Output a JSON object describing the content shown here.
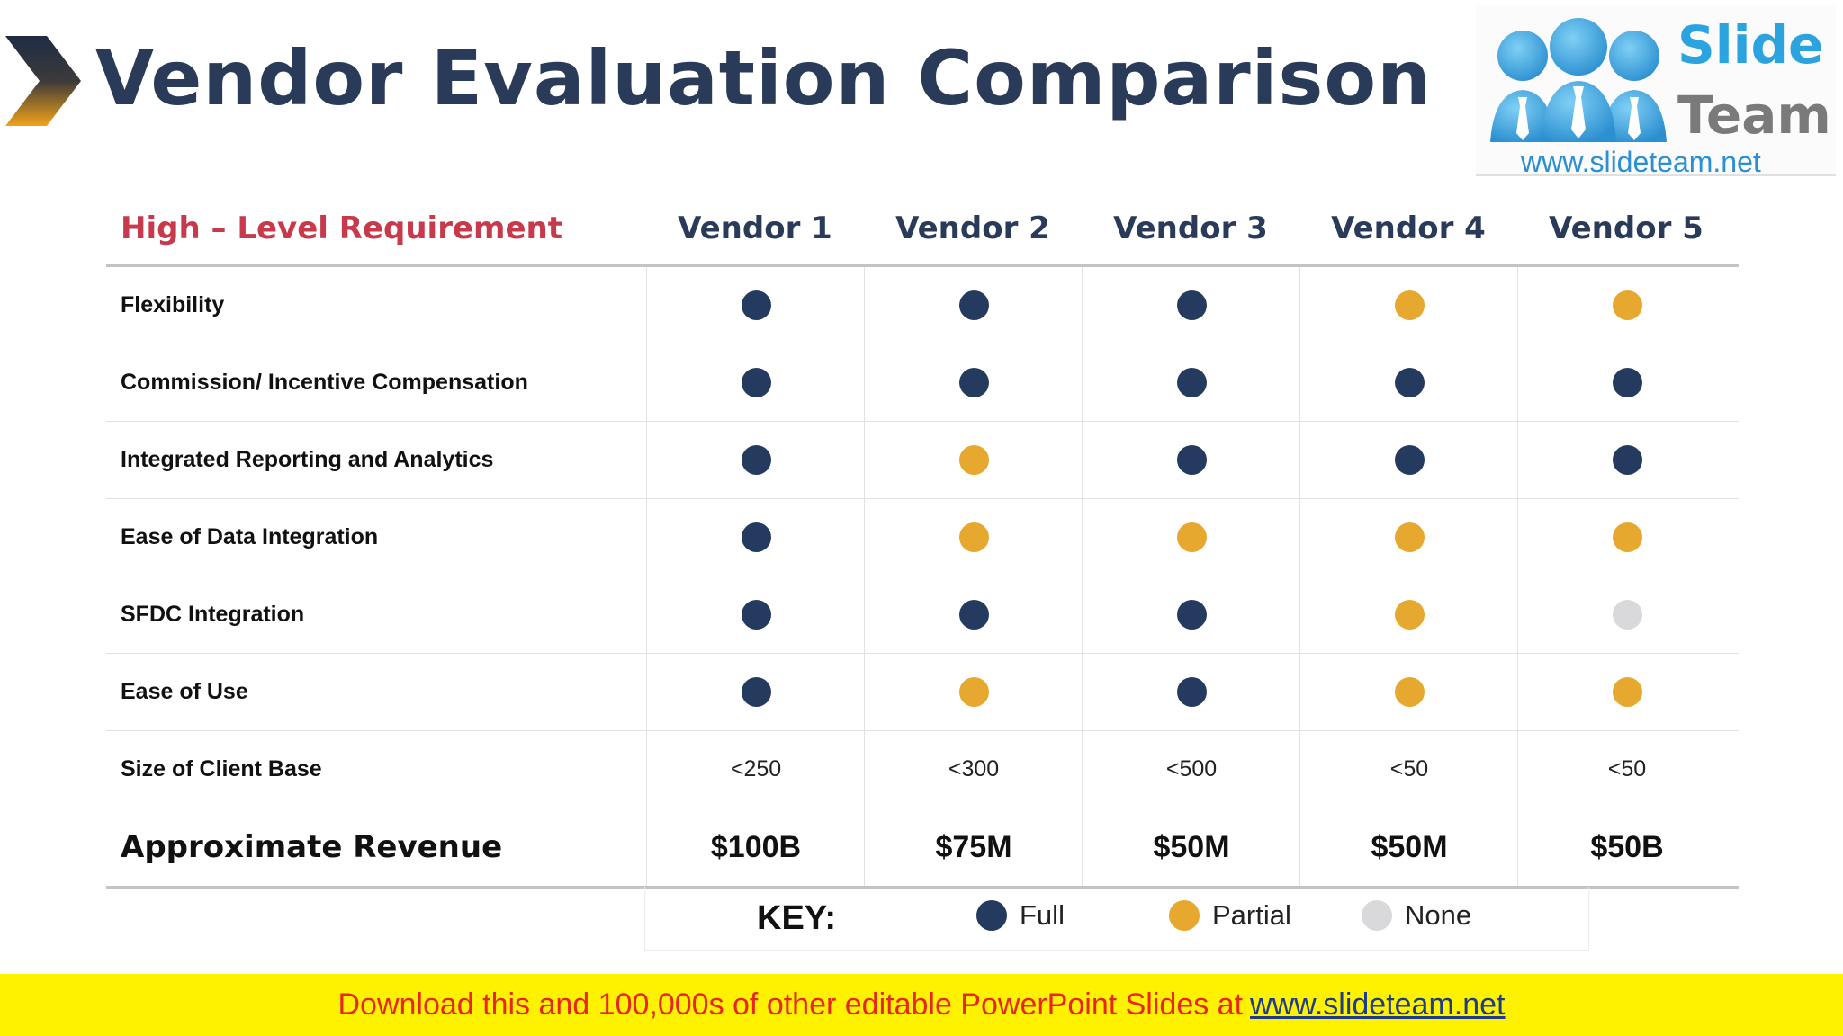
{
  "title": "Vendor Evaluation Comparison",
  "logo": {
    "word1": "Slide",
    "word2": "Team",
    "url": "www.slideteam.net"
  },
  "table": {
    "requirement_header": "High – Level Requirement",
    "vendors": [
      "Vendor 1",
      "Vendor 2",
      "Vendor 3",
      "Vendor 4",
      "Vendor 5"
    ],
    "rows": [
      {
        "label": "Flexibility",
        "cells": [
          "full",
          "full",
          "full",
          "partial",
          "partial"
        ]
      },
      {
        "label": "Commission/ Incentive Compensation",
        "cells": [
          "full",
          "full",
          "full",
          "full",
          "full"
        ]
      },
      {
        "label": "Integrated Reporting and Analytics",
        "cells": [
          "full",
          "partial",
          "full",
          "full",
          "full"
        ]
      },
      {
        "label": "Ease of Data Integration",
        "cells": [
          "full",
          "partial",
          "partial",
          "partial",
          "partial"
        ]
      },
      {
        "label": "SFDC Integration",
        "cells": [
          "full",
          "full",
          "full",
          "partial",
          "none"
        ]
      },
      {
        "label": "Ease of Use",
        "cells": [
          "full",
          "partial",
          "full",
          "partial",
          "partial"
        ]
      },
      {
        "label": "Size of Client Base",
        "values": [
          "<250",
          "<300",
          "<500",
          "<50",
          "<50"
        ]
      },
      {
        "label": "Approximate Revenue",
        "values": [
          "$100B",
          "$75M",
          "$50M",
          "$50M",
          "$50B"
        ]
      }
    ]
  },
  "key": {
    "label": "KEY:",
    "full": "Full",
    "partial": "Partial",
    "none": "None"
  },
  "colors": {
    "full": "#243a5e",
    "partial": "#e6a82e",
    "none": "#d9d9db"
  },
  "banner": {
    "text": "Download this and 100,000s of other editable PowerPoint Slides at",
    "link": "www.slideteam.net"
  }
}
